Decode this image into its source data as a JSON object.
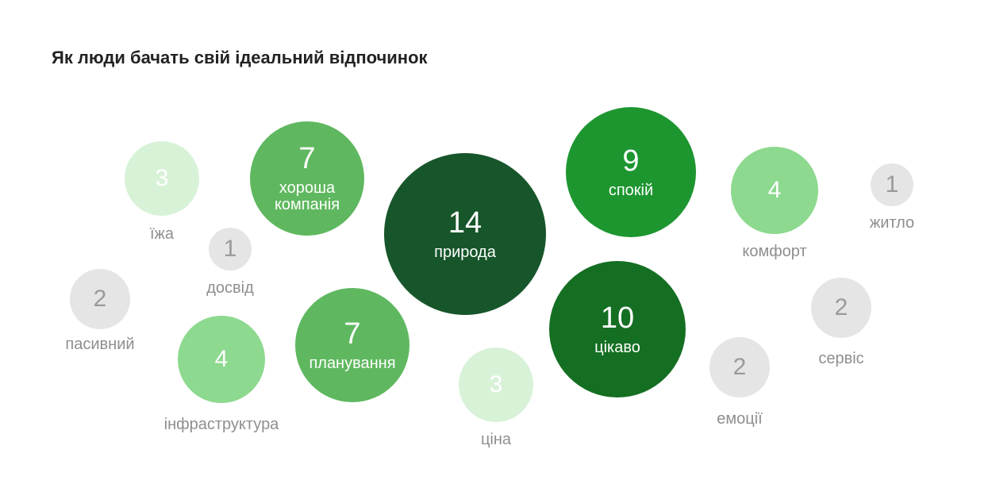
{
  "header": {
    "title": "Як люди бачать свій ідеальний відпочинок"
  },
  "colors": {
    "darkest": "#17562b",
    "dark": "#146f22",
    "strong": "#1d9630",
    "mid": "#5fb85f",
    "light": "#8dd98f",
    "pale": "#d8f2d8",
    "gray": "#e5e5e5"
  },
  "chart_data": {
    "type": "bubble",
    "title": "Як люди бачать свій ідеальний відпочинок",
    "items": [
      {
        "label": "природа",
        "value": 14
      },
      {
        "label": "цікаво",
        "value": 10
      },
      {
        "label": "спокій",
        "value": 9
      },
      {
        "label": "хороша компанія",
        "value": 7
      },
      {
        "label": "планування",
        "value": 7
      },
      {
        "label": "комфорт",
        "value": 4
      },
      {
        "label": "інфраструктура",
        "value": 4
      },
      {
        "label": "їжа",
        "value": 3
      },
      {
        "label": "ціна",
        "value": 3
      },
      {
        "label": "пасивний",
        "value": 2
      },
      {
        "label": "сервіс",
        "value": 2
      },
      {
        "label": "емоції",
        "value": 2
      },
      {
        "label": "досвід",
        "value": 1
      },
      {
        "label": "житло",
        "value": 1
      }
    ]
  }
}
